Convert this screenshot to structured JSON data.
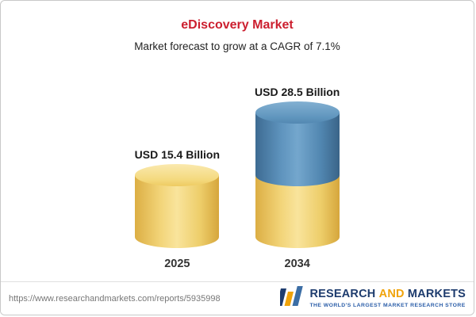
{
  "header": {
    "title": "eDiscovery Market",
    "subtitle": "Market forecast to grow at a CAGR of 7.1%"
  },
  "chart_data": {
    "type": "bar",
    "categories": [
      "2025",
      "2034"
    ],
    "values": [
      15.4,
      28.5
    ],
    "value_labels": [
      "USD 15.4 Billion",
      "USD 28.5 Billion"
    ],
    "unit": "USD Billion",
    "title": "eDiscovery Market",
    "subtitle": "Market forecast to grow at a CAGR of 7.1%",
    "cagr": "7.1%",
    "legend_position": "none",
    "grid": false,
    "bar_style": "cylinder",
    "bar_colors": {
      "base_segment": "#edcd69",
      "growth_segment": "#5e93bd"
    }
  },
  "footer": {
    "url": "https://www.researchandmarkets.com/reports/5935998",
    "logo": {
      "word1": "RESEARCH",
      "word2": "AND",
      "word3": "MARKETS",
      "tagline": "THE WORLD'S LARGEST MARKET RESEARCH STORE"
    }
  },
  "colors": {
    "title": "#cc1f2f",
    "subtitle": "#222222",
    "yellow": "#edcd69",
    "blue": "#5e93bd",
    "logo_navy": "#1e3c6e",
    "logo_orange": "#f0a30a"
  }
}
